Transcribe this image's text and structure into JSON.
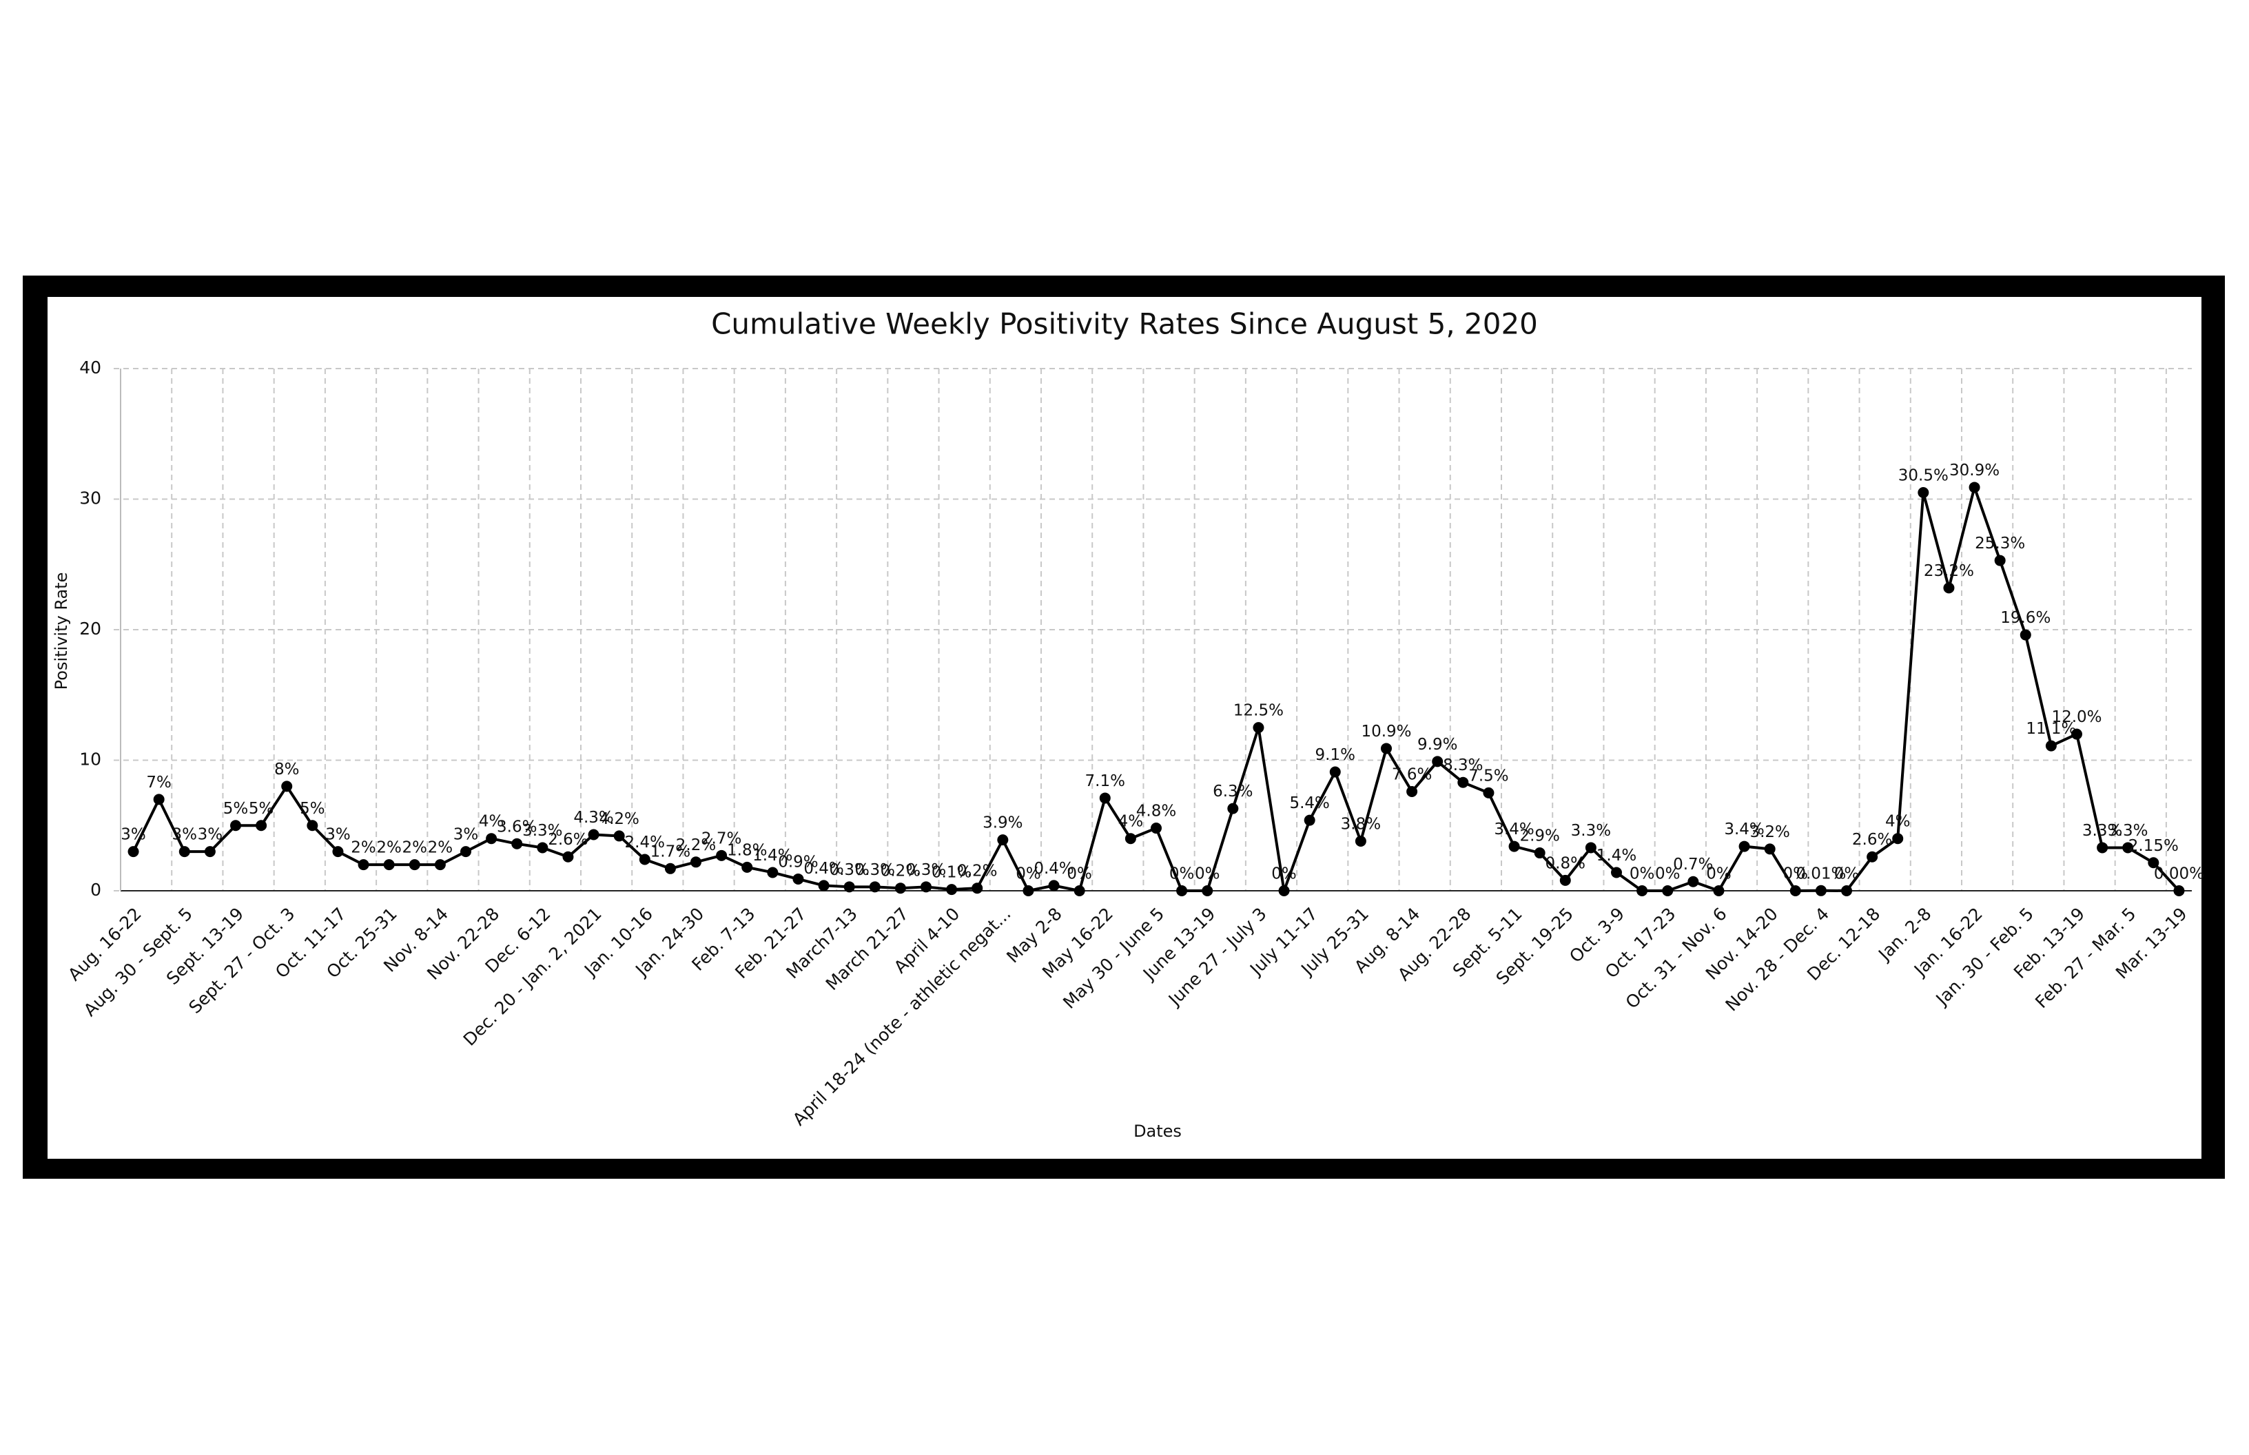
{
  "chart_data": {
    "type": "line",
    "title": "Cumulative Weekly Positivity Rates Since August 5, 2020",
    "xlabel": "Dates",
    "ylabel": "Positivity Rate",
    "color": "#000000",
    "grid": true,
    "ylim": [
      0,
      40
    ],
    "yticks": [
      0,
      10,
      20,
      30,
      40
    ],
    "categories": [
      "Aug. 16-22",
      null,
      "Aug. 30 - Sept. 5",
      null,
      "Sept. 13-19",
      null,
      "Sept. 27 - Oct. 3",
      null,
      "Oct. 11-17",
      null,
      "Oct. 25-31",
      null,
      "Nov. 8-14",
      null,
      "Nov. 22-28",
      null,
      "Dec. 6-12",
      null,
      "Dec. 20 - Jan. 2, 2021",
      null,
      "Jan. 10-16",
      null,
      "Jan. 24-30",
      null,
      "Feb. 7-13",
      null,
      "Feb. 21-27",
      null,
      "March7-13",
      null,
      "March 21-27",
      null,
      "April 4-10",
      null,
      "April 18-24 (note - athletic negat...",
      null,
      "May 2-8",
      null,
      "May 16-22",
      null,
      "May 30 - June 5",
      null,
      "June 13-19",
      null,
      "June 27 - July 3",
      null,
      "July 11-17",
      null,
      "July 25-31",
      null,
      "Aug. 8-14",
      null,
      "Aug. 22-28",
      null,
      "Sept. 5-11",
      null,
      "Sept. 19-25",
      null,
      "Oct. 3-9",
      null,
      "Oct. 17-23",
      null,
      "Oct. 31 - Nov. 6",
      null,
      "Nov. 14-20",
      null,
      "Nov. 28 - Dec. 4",
      null,
      "Dec. 12-18",
      null,
      "Jan. 2-8",
      null,
      "Jan. 16-22",
      null,
      "Jan. 30 - Feb. 5",
      null,
      "Feb. 13-19",
      null,
      "Feb. 27 - Mar. 5",
      null,
      "Mar. 13-19"
    ],
    "values": [
      3,
      7,
      3,
      3,
      5,
      5,
      8,
      5,
      3,
      2,
      2,
      2,
      2,
      3,
      4,
      3.6,
      3.3,
      2.6,
      4.3,
      4.2,
      2.4,
      1.7,
      2.2,
      2.7,
      1.8,
      1.4,
      0.9,
      0.4,
      0.3,
      0.3,
      0.2,
      0.3,
      0.1,
      0.2,
      3.9,
      0,
      0.4,
      0,
      7.1,
      4,
      4.8,
      0,
      0,
      6.3,
      12.5,
      0,
      5.4,
      9.1,
      3.8,
      10.9,
      7.6,
      9.9,
      8.3,
      7.5,
      3.4,
      2.9,
      0.8,
      3.3,
      1.4,
      0,
      0,
      0.7,
      0,
      3.4,
      3.2,
      0,
      0.01,
      0,
      2.6,
      4,
      30.5,
      23.2,
      30.9,
      25.3,
      19.6,
      11.1,
      12.0,
      3.3,
      3.3,
      2.15,
      0.0
    ],
    "value_labels": [
      "3%",
      "7%",
      "3%",
      "3%",
      "5%",
      "5%",
      "8%",
      "5%",
      "3%",
      "2%",
      "2%",
      "2%",
      "2%",
      "3%",
      "4%",
      "3.6%",
      "3.3%",
      "2.6%",
      "4.3%",
      "4.2%",
      "2.4%",
      "1.7%",
      "2.2%",
      "2.7%",
      "1.8%",
      "1.4%",
      "0.9%",
      "0.4%",
      "0.3%",
      "0.3%",
      "0.2%",
      "0.3%",
      "0.1%",
      "0.2%",
      "3.9%",
      "0%",
      "0.4%",
      "0%",
      "7.1%",
      "4%",
      "4.8%",
      "0%",
      "0%",
      "6.3%",
      "12.5%",
      "0%",
      "5.4%",
      "9.1%",
      "3.8%",
      "10.9%",
      "7.6%",
      "9.9%",
      "8.3%",
      "7.5%",
      "3.4%",
      "2.9%",
      "0.8%",
      "3.3%",
      "1.4%",
      "0%",
      "0%",
      "0.7%",
      "0%",
      "3.4%",
      "3.2%",
      "0%",
      "0.01%",
      "0%",
      "2.6%",
      "4%",
      "30.5%",
      "23.2%",
      "30.9%",
      "25.3%",
      "19.6%",
      "11.1%",
      "12.0%",
      "3.3%",
      "3.3%",
      "2.15%",
      "0.00%"
    ]
  }
}
